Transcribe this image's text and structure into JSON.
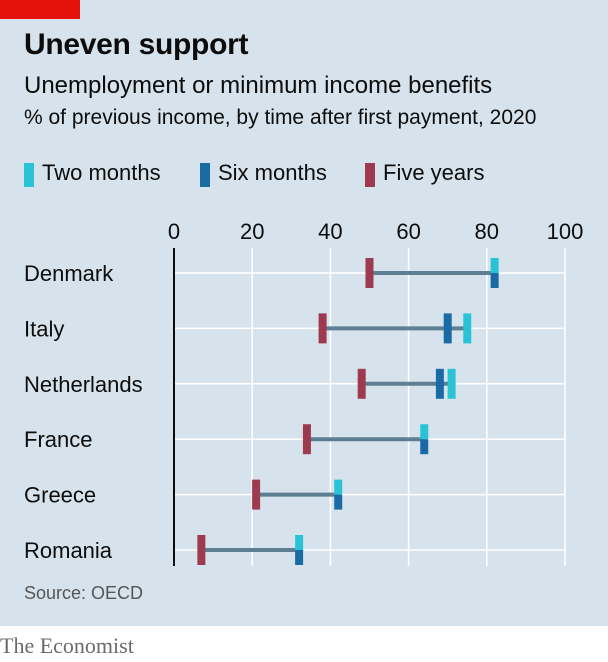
{
  "header": {
    "title": "Uneven support",
    "subtitle": "Unemployment or minimum income benefits",
    "caption": "% of previous income, by time after first payment, 2020"
  },
  "legend": [
    {
      "label": "Two months",
      "color": "#2ac3d6"
    },
    {
      "label": "Six months",
      "color": "#1a6aa6"
    },
    {
      "label": "Five years",
      "color": "#9e3a4f"
    }
  ],
  "footer": {
    "source": "Source: OECD",
    "brand": "The Economist"
  },
  "colors": {
    "background": "#d6e3ec",
    "connector": "#5e7e92",
    "grid": "#ffffff",
    "axis": "#0c0c0c"
  },
  "chart_data": {
    "type": "dot-range",
    "title": "Uneven support",
    "subtitle": "Unemployment or minimum income benefits",
    "ylabel": "% of previous income, by time after first payment, 2020",
    "xlim": [
      0,
      100
    ],
    "xticks": [
      0,
      20,
      40,
      60,
      80,
      100
    ],
    "grid": true,
    "legend_position": "top",
    "categories": [
      "Denmark",
      "Italy",
      "Netherlands",
      "France",
      "Greece",
      "Romania"
    ],
    "series": [
      {
        "name": "Two months",
        "values": [
          82,
          75,
          71,
          64,
          42,
          32
        ]
      },
      {
        "name": "Six months",
        "values": [
          82,
          70,
          68,
          64,
          42,
          32
        ]
      },
      {
        "name": "Five years",
        "values": [
          50,
          38,
          48,
          34,
          21,
          7
        ]
      }
    ]
  }
}
